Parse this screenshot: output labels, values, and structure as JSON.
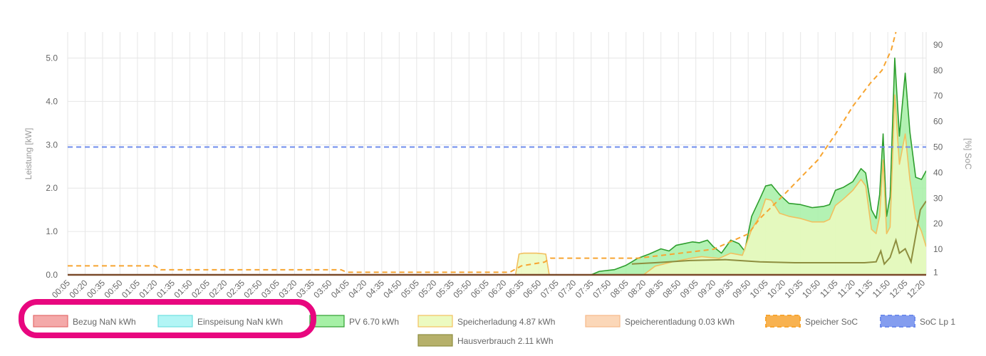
{
  "chart_data": {
    "type": "area",
    "y_left": {
      "label": "Leistung [kW]",
      "range": [
        0,
        5.6
      ],
      "ticks": [
        "0.0",
        "1.0",
        "2.0",
        "3.0",
        "4.0",
        "5.0"
      ]
    },
    "y_right": {
      "label": "[%] SoC",
      "range": [
        0,
        95
      ],
      "ticks": [
        "1",
        "10",
        "20",
        "30",
        "40",
        "50",
        "60",
        "70",
        "80",
        "90"
      ]
    },
    "x_ticks": [
      "00:05",
      "00:20",
      "00:35",
      "00:50",
      "01:05",
      "01:20",
      "01:35",
      "01:50",
      "02:05",
      "02:20",
      "02:35",
      "02:50",
      "03:05",
      "03:20",
      "03:35",
      "03:50",
      "04:05",
      "04:20",
      "04:35",
      "04:50",
      "05:05",
      "05:20",
      "05:35",
      "05:50",
      "06:05",
      "06:20",
      "06:35",
      "06:50",
      "07:05",
      "07:20",
      "07:35",
      "07:50",
      "08:05",
      "08:20",
      "08:35",
      "08:50",
      "09:05",
      "09:20",
      "09:35",
      "09:50",
      "10:05",
      "10:20",
      "10:35",
      "10:50",
      "11:05",
      "11:20",
      "11:35",
      "11:50",
      "12:05",
      "12:20"
    ],
    "grid": true,
    "series": [
      {
        "name": "Bezug NaN kWh",
        "kind": "area",
        "axis": "left",
        "stroke": "#e46b6b",
        "fill": "#f4a9a9",
        "points": [
          [
            "00:05",
            0
          ],
          [
            "12:23",
            0
          ]
        ]
      },
      {
        "name": "Einspeisung NaN kWh",
        "kind": "area",
        "axis": "left",
        "stroke": "#6ee0e0",
        "fill": "#b2f5f5",
        "points": [
          [
            "00:05",
            0
          ],
          [
            "12:23",
            0
          ]
        ]
      },
      {
        "name": "PV 6.70 kWh",
        "kind": "area",
        "axis": "left",
        "stroke": "#2e9e2e",
        "fill": "#a6f0a6",
        "points": [
          [
            "00:05",
            0
          ],
          [
            "07:35",
            0
          ],
          [
            "07:42",
            0.08
          ],
          [
            "07:55",
            0.12
          ],
          [
            "08:05",
            0.22
          ],
          [
            "08:15",
            0.38
          ],
          [
            "08:25",
            0.48
          ],
          [
            "08:35",
            0.6
          ],
          [
            "08:42",
            0.55
          ],
          [
            "08:48",
            0.68
          ],
          [
            "08:55",
            0.72
          ],
          [
            "09:02",
            0.76
          ],
          [
            "09:08",
            0.74
          ],
          [
            "09:15",
            0.8
          ],
          [
            "09:20",
            0.65
          ],
          [
            "09:27",
            0.5
          ],
          [
            "09:35",
            0.8
          ],
          [
            "09:42",
            0.72
          ],
          [
            "09:47",
            0.55
          ],
          [
            "09:53",
            1.35
          ],
          [
            "10:00",
            1.75
          ],
          [
            "10:05",
            2.05
          ],
          [
            "10:10",
            2.08
          ],
          [
            "10:17",
            1.85
          ],
          [
            "10:25",
            1.65
          ],
          [
            "10:35",
            1.62
          ],
          [
            "10:45",
            1.55
          ],
          [
            "10:55",
            1.58
          ],
          [
            "11:00",
            1.62
          ],
          [
            "11:05",
            1.95
          ],
          [
            "11:12",
            2.02
          ],
          [
            "11:20",
            2.15
          ],
          [
            "11:27",
            2.45
          ],
          [
            "11:31",
            2.35
          ],
          [
            "11:36",
            1.5
          ],
          [
            "11:40",
            1.3
          ],
          [
            "11:43",
            1.85
          ],
          [
            "11:46",
            3.25
          ],
          [
            "11:49",
            1.35
          ],
          [
            "11:52",
            1.8
          ],
          [
            "11:56",
            5.0
          ],
          [
            "12:00",
            3.2
          ],
          [
            "12:05",
            4.65
          ],
          [
            "12:09",
            3.3
          ],
          [
            "12:14",
            2.25
          ],
          [
            "12:19",
            2.2
          ],
          [
            "12:23",
            2.4
          ]
        ]
      },
      {
        "name": "Speicherladung 4.87 kWh",
        "kind": "area",
        "axis": "left",
        "stroke": "#f2c05e",
        "fill": "#ecfac0",
        "points": [
          [
            "00:05",
            0
          ],
          [
            "06:30",
            0
          ],
          [
            "06:33",
            0.48
          ],
          [
            "06:37",
            0.5
          ],
          [
            "06:48",
            0.5
          ],
          [
            "06:56",
            0.48
          ],
          [
            "06:59",
            0
          ],
          [
            "08:20",
            0
          ],
          [
            "08:30",
            0.2
          ],
          [
            "08:45",
            0.3
          ],
          [
            "09:00",
            0.38
          ],
          [
            "09:10",
            0.42
          ],
          [
            "09:25",
            0.38
          ],
          [
            "09:35",
            0.5
          ],
          [
            "09:45",
            0.45
          ],
          [
            "09:53",
            1.05
          ],
          [
            "10:00",
            1.35
          ],
          [
            "10:05",
            1.75
          ],
          [
            "10:10",
            1.72
          ],
          [
            "10:17",
            1.42
          ],
          [
            "10:25",
            1.35
          ],
          [
            "10:35",
            1.3
          ],
          [
            "10:45",
            1.22
          ],
          [
            "10:55",
            1.22
          ],
          [
            "11:00",
            1.28
          ],
          [
            "11:05",
            1.6
          ],
          [
            "11:12",
            1.75
          ],
          [
            "11:20",
            1.95
          ],
          [
            "11:27",
            2.2
          ],
          [
            "11:31",
            2.05
          ],
          [
            "11:36",
            1.05
          ],
          [
            "11:40",
            0.95
          ],
          [
            "11:43",
            1.35
          ],
          [
            "11:46",
            2.65
          ],
          [
            "11:49",
            0.95
          ],
          [
            "11:52",
            1.1
          ],
          [
            "11:56",
            4.15
          ],
          [
            "12:00",
            2.55
          ],
          [
            "12:05",
            3.25
          ],
          [
            "12:09",
            2.2
          ],
          [
            "12:14",
            1.3
          ],
          [
            "12:19",
            1.0
          ],
          [
            "12:23",
            0.65
          ]
        ]
      },
      {
        "name": "Speicherentladung 0.03 kWh",
        "kind": "area",
        "axis": "left",
        "stroke": "#f6b98a",
        "fill": "#fbd7b8",
        "points": [
          [
            "00:05",
            0
          ],
          [
            "12:23",
            0
          ]
        ]
      },
      {
        "name": "Speicher SoC",
        "kind": "line-dashed",
        "axis": "right",
        "stroke": "#f7a531",
        "points": [
          [
            "00:05",
            3.5
          ],
          [
            "01:20",
            3.5
          ],
          [
            "01:25",
            2.0
          ],
          [
            "04:00",
            2.0
          ],
          [
            "04:05",
            1.0
          ],
          [
            "06:25",
            1.0
          ],
          [
            "06:35",
            3.5
          ],
          [
            "06:55",
            5.0
          ],
          [
            "07:00",
            6.5
          ],
          [
            "08:15",
            6.5
          ],
          [
            "09:20",
            10.0
          ],
          [
            "09:50",
            16.0
          ],
          [
            "10:00",
            22.0
          ],
          [
            "10:20",
            31.0
          ],
          [
            "10:35",
            38.0
          ],
          [
            "10:50",
            45.0
          ],
          [
            "11:05",
            55.0
          ],
          [
            "11:20",
            66.0
          ],
          [
            "11:35",
            75.0
          ],
          [
            "11:45",
            80.0
          ],
          [
            "11:53",
            88.0
          ],
          [
            "11:57",
            95.0
          ]
        ]
      },
      {
        "name": "SoC Lp 1",
        "kind": "line-dashed",
        "axis": "right",
        "stroke": "#6f8cec",
        "points": [
          [
            "00:05",
            50
          ],
          [
            "12:23",
            50
          ]
        ]
      },
      {
        "name": "Hausverbrauch 2.11 kWh",
        "kind": "area",
        "axis": "left",
        "stroke": "#8e8e3f",
        "fill": "#b6b06a",
        "points": [
          [
            "00:05",
            0
          ],
          [
            "12:23",
            0
          ]
        ]
      }
    ],
    "house_line": {
      "stroke": "#8e8e3f",
      "points": [
        [
          "08:10",
          0.25
        ],
        [
          "08:30",
          0.28
        ],
        [
          "09:00",
          0.33
        ],
        [
          "09:30",
          0.35
        ],
        [
          "10:00",
          0.3
        ],
        [
          "10:30",
          0.28
        ],
        [
          "11:00",
          0.28
        ],
        [
          "11:30",
          0.28
        ],
        [
          "11:40",
          0.3
        ],
        [
          "11:44",
          0.55
        ],
        [
          "11:47",
          0.25
        ],
        [
          "11:52",
          0.4
        ],
        [
          "11:57",
          0.8
        ],
        [
          "12:00",
          0.5
        ],
        [
          "12:05",
          0.6
        ],
        [
          "12:10",
          0.3
        ],
        [
          "12:18",
          1.5
        ],
        [
          "12:23",
          1.7
        ]
      ]
    },
    "legend": {
      "row1": [
        "Bezug NaN kWh",
        "Einspeisung NaN kWh",
        "PV 6.70 kWh",
        "Speicherladung 4.87 kWh",
        "Speicherentladung 0.03 kWh",
        "Speicher SoC",
        "SoC Lp 1"
      ],
      "row2": [
        "Hausverbrauch 2.11 kWh"
      ]
    },
    "highlight": {
      "color": "#e8077f",
      "around": [
        "Bezug NaN kWh",
        "Einspeisung NaN kWh"
      ]
    }
  }
}
